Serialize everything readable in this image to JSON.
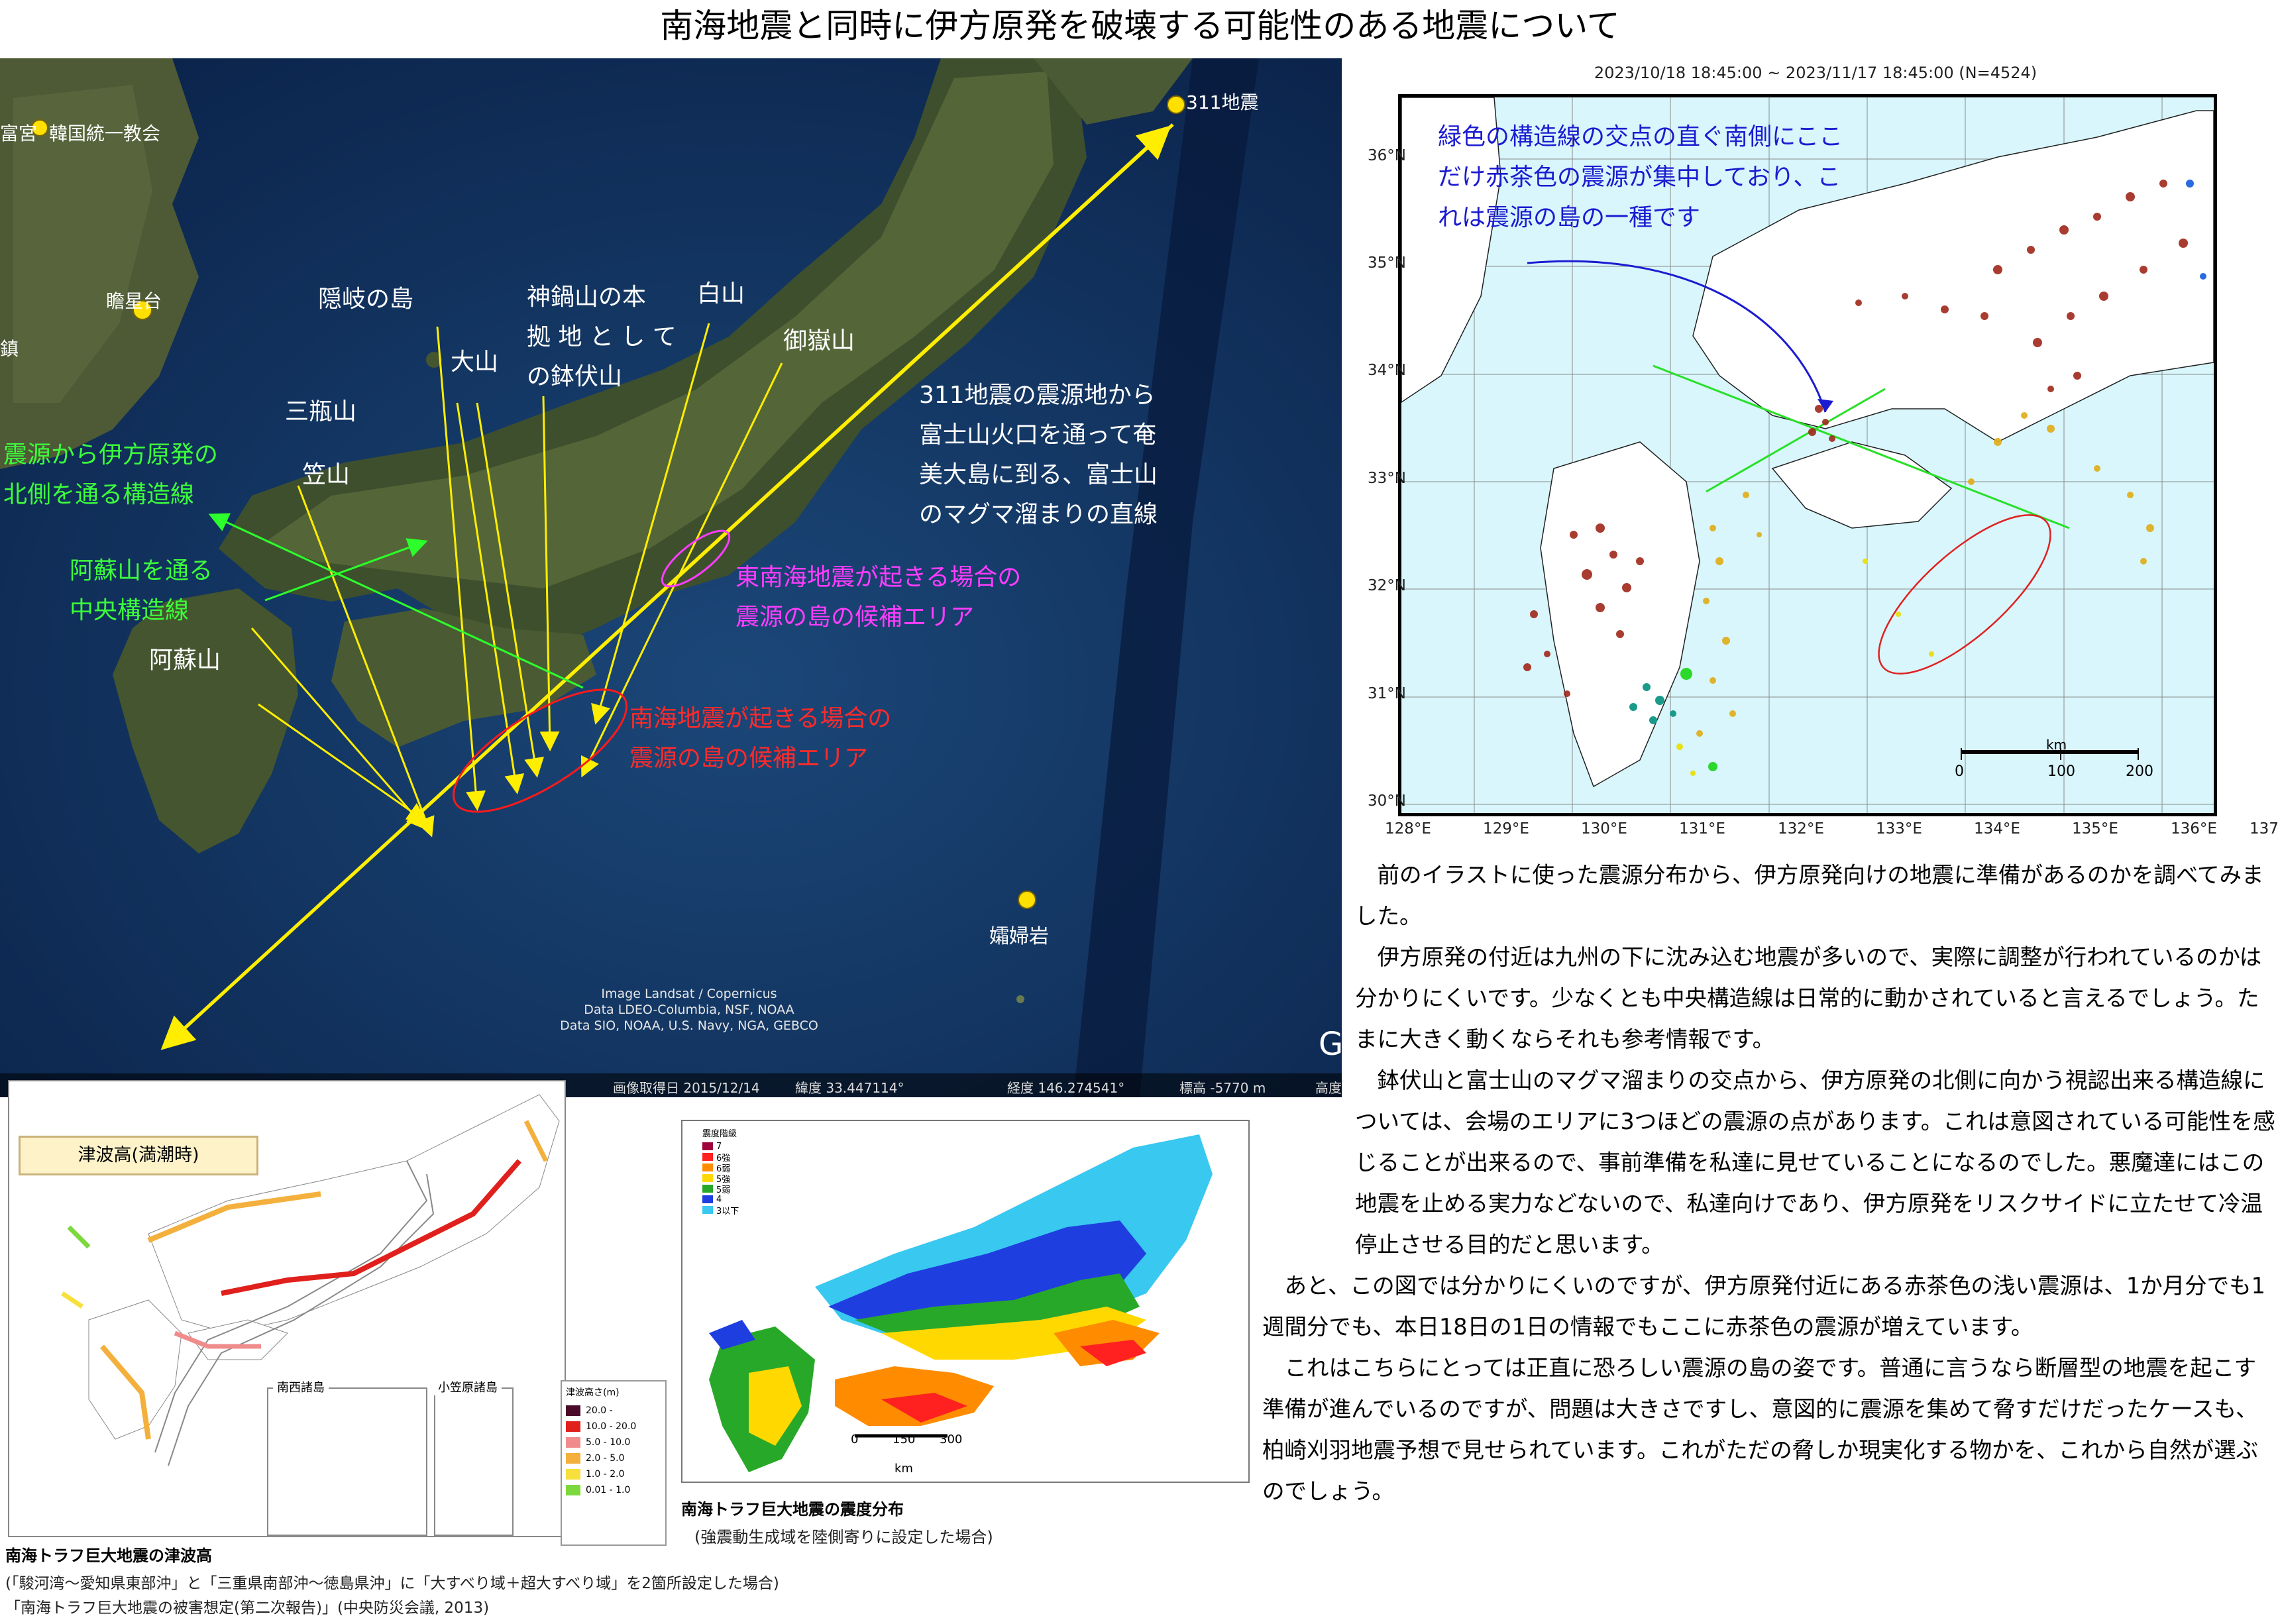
{
  "title": "南海地震と同時に伊方原発を破壊する可能性のある地震について",
  "satellite_map": {
    "labels": {
      "korea_church": "富宮",
      "korea_church2": "韓国統一教会",
      "cheomseongdae": "瞻星台",
      "left_edge": "鎮",
      "oki": "隠岐の島",
      "kannabe": "神鍋山の本",
      "kannabe2": "拠 地 と し て",
      "kannabe3": "の鉢伏山",
      "hakusan": "白山",
      "ontake": "御嶽山",
      "daisen": "大山",
      "sanbe": "三瓶山",
      "kasayama": "笠山",
      "aso": "阿蘇山",
      "eq311": "311地震",
      "sofugan": "孀婦岩",
      "line311_1": "311地震の震源地から",
      "line311_2": "富士山火口を通って奄",
      "line311_3": "美大島に到る、富士山",
      "line311_4": "のマグマ溜まりの直線",
      "struct_1": "震源から伊方原発の",
      "struct_2": "北側を通る構造線",
      "mtl_1": "阿蘇山を通る",
      "mtl_2": "中央構造線",
      "nankai_1": "南海地震が起きる場合の",
      "nankai_2": "震源の島の候補エリア",
      "tonankai_1": "東南海地震が起きる場合の",
      "tonankai_2": "震源の島の候補エリア",
      "credit_1": "Image Landsat / Copernicus",
      "credit_2": "Data LDEO-Columbia, NSF, NOAA",
      "credit_3": "Data SIO, NOAA, U.S. Navy, NGA, GEBCO",
      "google_g": "G"
    },
    "footer": {
      "date": "画像取得日 2015/12/14",
      "lat": "緯度 33.447114°",
      "lon": "経度 146.274541°",
      "elev": "標高 -5770 m",
      "alt": "高度"
    }
  },
  "quake_map": {
    "header": "2023/10/18 18:45:00 ~ 2023/11/17 18:45:00 (N=4524)",
    "note": "緑色の構造線の交点の直ぐ南側にここだけ赤茶色の震源が集中しており、これは震源の島の一種です",
    "lat_labels": [
      "36°N",
      "35°N",
      "34°N",
      "33°N",
      "32°N",
      "31°N",
      "30°N"
    ],
    "lon_labels": [
      "128°E",
      "129°E",
      "130°E",
      "131°E",
      "132°E",
      "133°E",
      "134°E",
      "135°E",
      "136°E",
      "137°E"
    ],
    "scale_unit": "km",
    "scale_ticks": [
      "0",
      "100",
      "200"
    ]
  },
  "body_paragraphs": [
    "前のイラストに使った震源分布から、伊方原発向けの地震に準備があるのかを調べてみました。",
    "伊方原発の付近は九州の下に沈み込む地震が多いので、実際に調整が行われているのかは分かりにくいです。少なくとも中央構造線は日常的に動かされていると言えるでしょう。たまに大きく動くならそれも参考情報です。",
    "鉢伏山と富士山のマグマ溜まりの交点から、伊方原発の北側に向かう視認出来る構造線については、会場のエリアに3つほどの震源の点があります。これは意図されている可能性を感じることが出来るので、事前準備を私達に見せていることになるのでした。悪魔達にはこの地震を止める実力などないので、私達向けであり、伊方原発をリスクサイドに立たせて冷温停止させる目的だと思います。",
    "あと、この図では分かりにくいのですが、伊方原発付近にある赤茶色の浅い震源は、1か月分でも1週間分でも、本日18日の1日の情報でもここに赤茶色の震源が増えています。",
    "これはこちらにとっては正直に恐ろしい震源の島の姿です。普通に言うなら断層型の地震を起こす準備が進んでいるのですが、問題は大きさですし、意図的に震源を集めて脅すだけだったケースも、柏崎刈羽地震予想で見せられています。これがただの脅しか現実化する物かを、これから自然が選ぶのでしょう。"
  ],
  "tsunami_map": {
    "label": "津波高(満潮時)",
    "inset_1": "南西諸島",
    "inset_2": "小笠原諸島",
    "legend_title": "津波高さ(m)",
    "legend": [
      {
        "range": "20.0 -",
        "color": "#4a0a2a"
      },
      {
        "range": "10.0 - 20.0",
        "color": "#e0201c"
      },
      {
        "range": "5.0 - 10.0",
        "color": "#f08c8c"
      },
      {
        "range": "2.0 - 5.0",
        "color": "#f4b03c"
      },
      {
        "range": "1.0 - 2.0",
        "color": "#f8e03c"
      },
      {
        "range": "0.01 - 1.0",
        "color": "#7cd83c"
      }
    ],
    "caption_title": "南海トラフ巨大地震の津波高",
    "caption_2": "(「駿河湾～愛知県東部沖」と「三重県南部沖～徳島県沖」に「大すべり域＋超大すべり域」を2箇所設定した場合)",
    "caption_3": "「南海トラフ巨大地震の被害想定(第二次報告)」(中央防災会議, 2013)"
  },
  "intensity_map": {
    "legend_title": "震度階級",
    "legend": [
      {
        "level": "7",
        "color": "#a0003c"
      },
      {
        "level": "6強",
        "color": "#ff2020"
      },
      {
        "level": "6弱",
        "color": "#ff8c00"
      },
      {
        "level": "5強",
        "color": "#ffd800"
      },
      {
        "level": "5弱",
        "color": "#28a828"
      },
      {
        "level": "4",
        "color": "#1f3ee0"
      },
      {
        "level": "3以下",
        "color": "#38c8f0"
      }
    ],
    "scale_ticks": [
      "0",
      "150",
      "300"
    ],
    "scale_unit": "km",
    "caption_title": "南海トラフ巨大地震の震度分布",
    "caption_2": "(強震動生成域を陸側寄りに設定した場合)"
  }
}
